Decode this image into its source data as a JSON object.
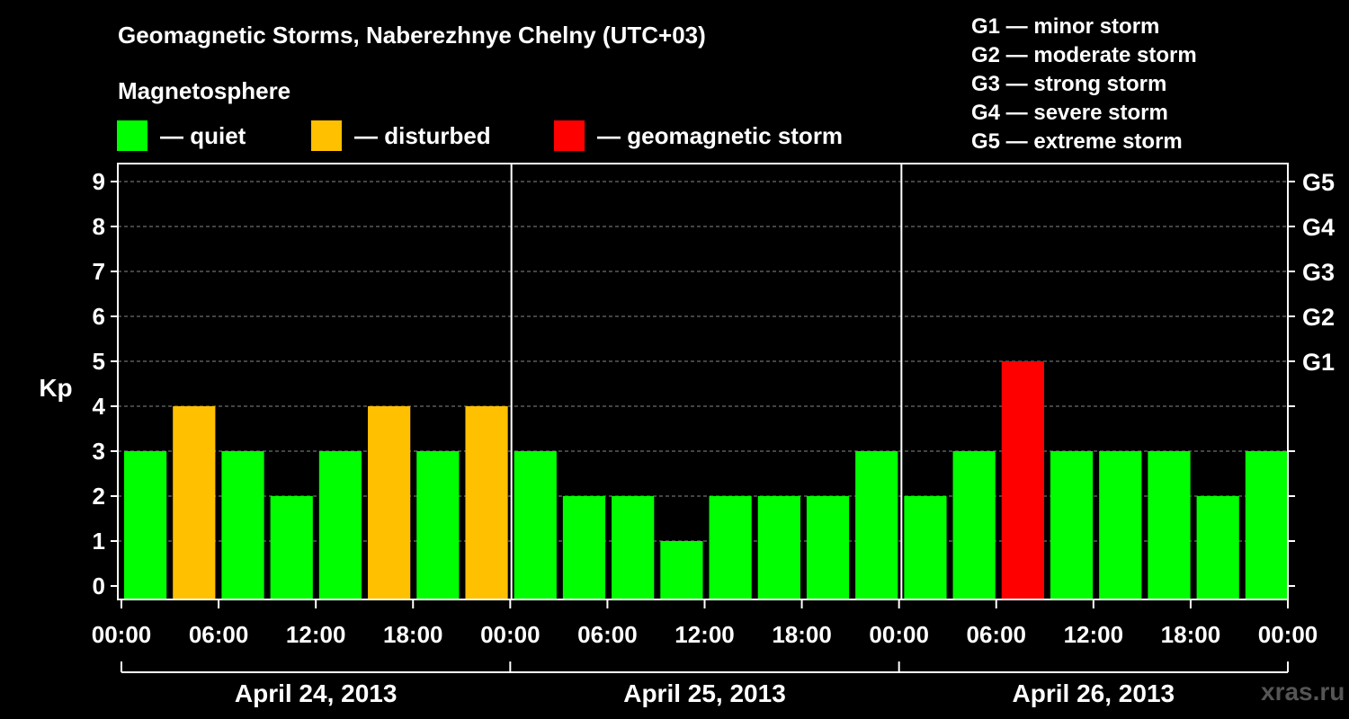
{
  "chart_data": {
    "type": "bar",
    "title": "Geomagnetic Storms, Naberezhnye Chelny (UTC+03)",
    "subtitle": "Magnetosphere",
    "ylabel": "Kp",
    "ylim": [
      0,
      9
    ],
    "y_ticks": [
      "0",
      "1",
      "2",
      "3",
      "4",
      "5",
      "6",
      "7",
      "8",
      "9"
    ],
    "right_ticks": [
      {
        "kp": 5,
        "label": "G1"
      },
      {
        "kp": 6,
        "label": "G2"
      },
      {
        "kp": 7,
        "label": "G3"
      },
      {
        "kp": 8,
        "label": "G4"
      },
      {
        "kp": 9,
        "label": "G5"
      }
    ],
    "x_tick_labels": [
      "00:00",
      "06:00",
      "12:00",
      "18:00",
      "00:00",
      "06:00",
      "12:00",
      "18:00",
      "00:00",
      "06:00",
      "12:00",
      "18:00",
      "00:00"
    ],
    "days": [
      "April 24, 2013",
      "April 25, 2013",
      "April 26, 2013"
    ],
    "values": [
      3,
      4,
      3,
      2,
      3,
      4,
      3,
      4,
      3,
      2,
      2,
      1,
      2,
      2,
      2,
      3,
      2,
      3,
      5,
      3,
      3,
      3,
      2,
      3
    ],
    "legend": [
      {
        "label": "— quiet",
        "color": "#00ff00"
      },
      {
        "label": "— disturbed",
        "color": "#ffc000"
      },
      {
        "label": "— geomagnetic storm",
        "color": "#ff0000"
      }
    ],
    "storm_scale": [
      "G1 — minor storm",
      "G2 — moderate storm",
      "G3 — strong storm",
      "G4 — severe storm",
      "G5 — extreme storm"
    ]
  },
  "credit": "xras.ru",
  "colors": {
    "quiet": "#00ff00",
    "disturbed": "#ffc000",
    "storm": "#ff0000",
    "background": "#000000"
  }
}
